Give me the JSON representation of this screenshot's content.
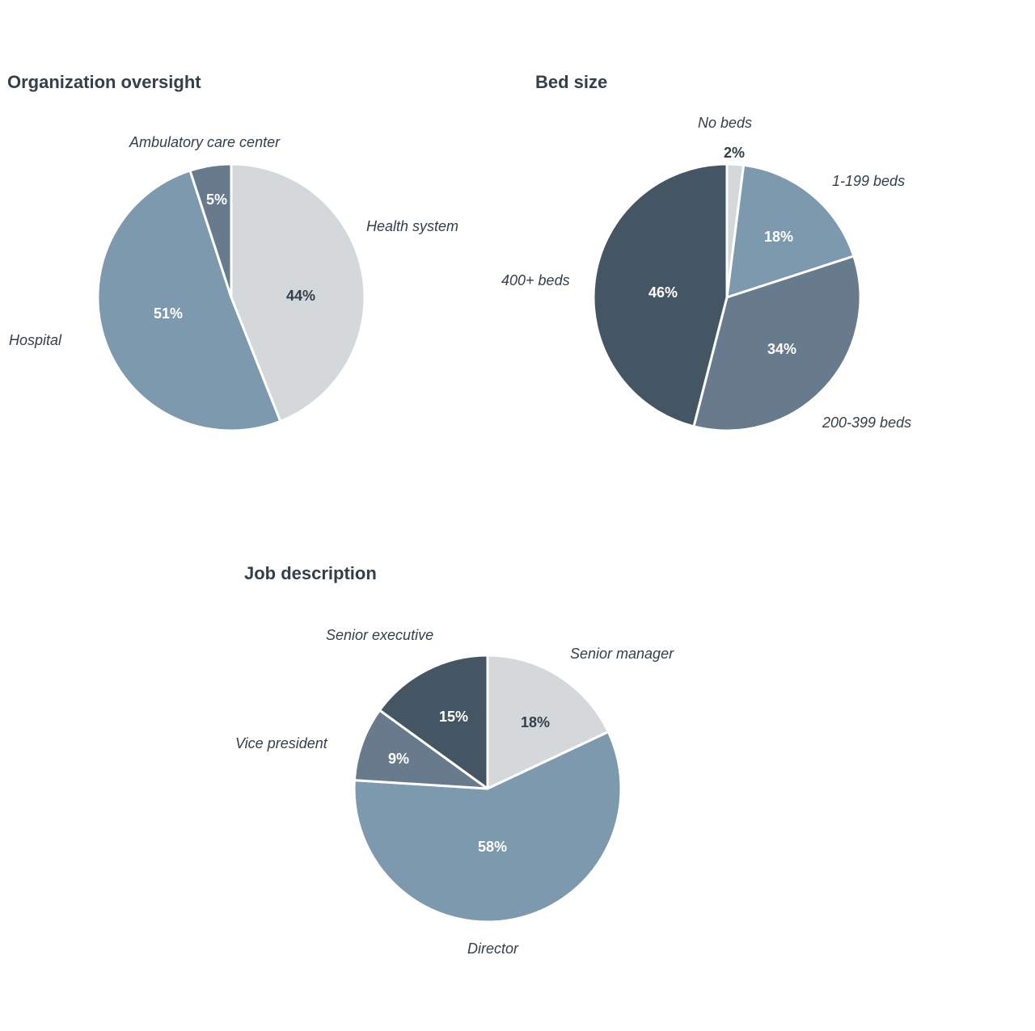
{
  "chart_data": [
    {
      "type": "pie",
      "title": "Organization oversight",
      "categories": [
        "Health system",
        "Hospital",
        "Ambulatory care center"
      ],
      "values": [
        44,
        51,
        5
      ],
      "value_labels": [
        "44%",
        "51%",
        "5%"
      ],
      "colors": [
        "#d5d8da",
        "#7d99ad",
        "#677b8d"
      ],
      "start": "12 o'clock",
      "direction": "clockwise"
    },
    {
      "type": "pie",
      "title": "Bed size",
      "categories": [
        "No beds",
        "1-199 beds",
        "200-399 beds",
        "400+ beds"
      ],
      "values": [
        2,
        18,
        34,
        46
      ],
      "value_labels": [
        "2%",
        "18%",
        "34%",
        "46%"
      ],
      "colors": [
        "#d5d8da",
        "#7d99ad",
        "#677b8d",
        "#445563"
      ],
      "start": "12 o'clock",
      "direction": "clockwise"
    },
    {
      "type": "pie",
      "title": "Job description",
      "categories": [
        "Senior manager",
        "Director",
        "Vice president",
        "Senior executive"
      ],
      "values": [
        18,
        58,
        9,
        15
      ],
      "value_labels": [
        "18%",
        "58%",
        "9%",
        "15%"
      ],
      "colors": [
        "#d5d8da",
        "#7d99ad",
        "#677b8d",
        "#445563"
      ],
      "start": "12 o'clock",
      "direction": "clockwise"
    }
  ]
}
